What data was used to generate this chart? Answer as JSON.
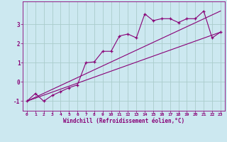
{
  "title": "",
  "xlabel": "Windchill (Refroidissement éolien,°C)",
  "ylabel": "",
  "background_color": "#cce8f0",
  "grid_color": "#aacccc",
  "line_color": "#880077",
  "xlim": [
    -0.5,
    23.5
  ],
  "ylim": [
    -1.5,
    4.2
  ],
  "yticks": [
    -1,
    0,
    1,
    2,
    3
  ],
  "xticks": [
    0,
    1,
    2,
    3,
    4,
    5,
    6,
    7,
    8,
    9,
    10,
    11,
    12,
    13,
    14,
    15,
    16,
    17,
    18,
    19,
    20,
    21,
    22,
    23
  ],
  "data_x": [
    0,
    1,
    2,
    3,
    4,
    5,
    6,
    7,
    8,
    9,
    10,
    11,
    12,
    13,
    14,
    15,
    16,
    17,
    18,
    19,
    20,
    21,
    22,
    23
  ],
  "data_y": [
    -1.0,
    -0.6,
    -1.0,
    -0.7,
    -0.5,
    -0.3,
    -0.15,
    1.0,
    1.05,
    1.6,
    1.6,
    2.4,
    2.5,
    2.3,
    3.55,
    3.2,
    3.3,
    3.3,
    3.1,
    3.3,
    3.3,
    3.7,
    2.3,
    2.6
  ],
  "line1_x": [
    0,
    23
  ],
  "line1_y": [
    -1.0,
    2.6
  ],
  "line2_x": [
    0,
    23
  ],
  "line2_y": [
    -1.0,
    3.7
  ]
}
